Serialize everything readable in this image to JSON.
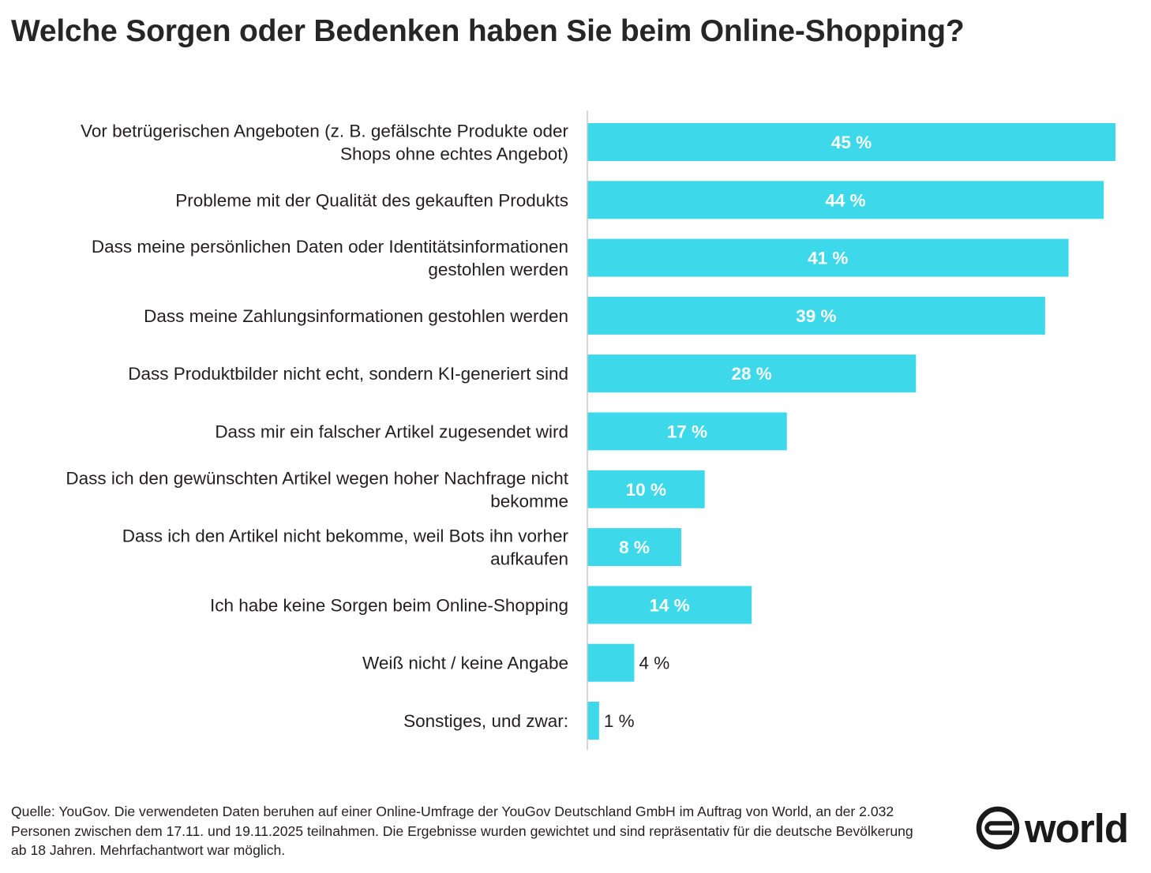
{
  "chart_data": {
    "type": "bar",
    "orientation": "horizontal",
    "title": "Welche Sorgen oder Bedenken haben Sie beim Online-Shopping?",
    "categories": [
      [
        "Vor betrügerischen Angeboten (z. B. gefälschte Produkte oder",
        "Shops ohne echtes Angebot)"
      ],
      [
        "Probleme mit der Qualität des gekauften Produkts"
      ],
      [
        "Dass meine persönlichen Daten oder Identitätsinformationen",
        "gestohlen werden"
      ],
      [
        "Dass meine Zahlungsinformationen gestohlen werden"
      ],
      [
        "Dass Produktbilder nicht echt, sondern KI-generiert sind"
      ],
      [
        "Dass mir ein falscher Artikel zugesendet wird"
      ],
      [
        "Dass ich den gewünschten Artikel wegen hoher Nachfrage nicht",
        "bekomme"
      ],
      [
        "Dass ich den Artikel nicht bekomme, weil Bots ihn vorher",
        "aufkaufen"
      ],
      [
        "Ich habe keine Sorgen beim Online-Shopping"
      ],
      [
        "Weiß nicht / keine Angabe"
      ],
      [
        "Sonstiges, und zwar:"
      ]
    ],
    "values": [
      45,
      44,
      41,
      39,
      28,
      17,
      10,
      8,
      14,
      4,
      1
    ],
    "value_labels": [
      "45 %",
      "44 %",
      "41 %",
      "39 %",
      "28 %",
      "17 %",
      "10 %",
      "8 %",
      "14 %",
      "4 %",
      "1 %"
    ],
    "xlim": [
      0,
      45
    ],
    "unit": "%",
    "xlabel": "",
    "ylabel": "",
    "grid": false,
    "legend": "none",
    "bar_color": "#3dd9eb",
    "label_color_inside": "#ffffff",
    "label_color_outside": "#231f20"
  },
  "footer": {
    "source_text": "Quelle: YouGov. Die verwendeten Daten beruhen auf einer Online-Umfrage der YouGov Deutschland GmbH im Auftrag von World, an der 2.032 Personen zwischen dem 17.11. und 19.11.2025 teilnahmen. Die Ergebnisse wurden gewichtet und sind repräsentativ für die deutsche Bevölkerung ab 18 Jahren. Mehrfachantwort war möglich."
  },
  "logo": {
    "text": "world",
    "icon": "world-logo-icon"
  }
}
